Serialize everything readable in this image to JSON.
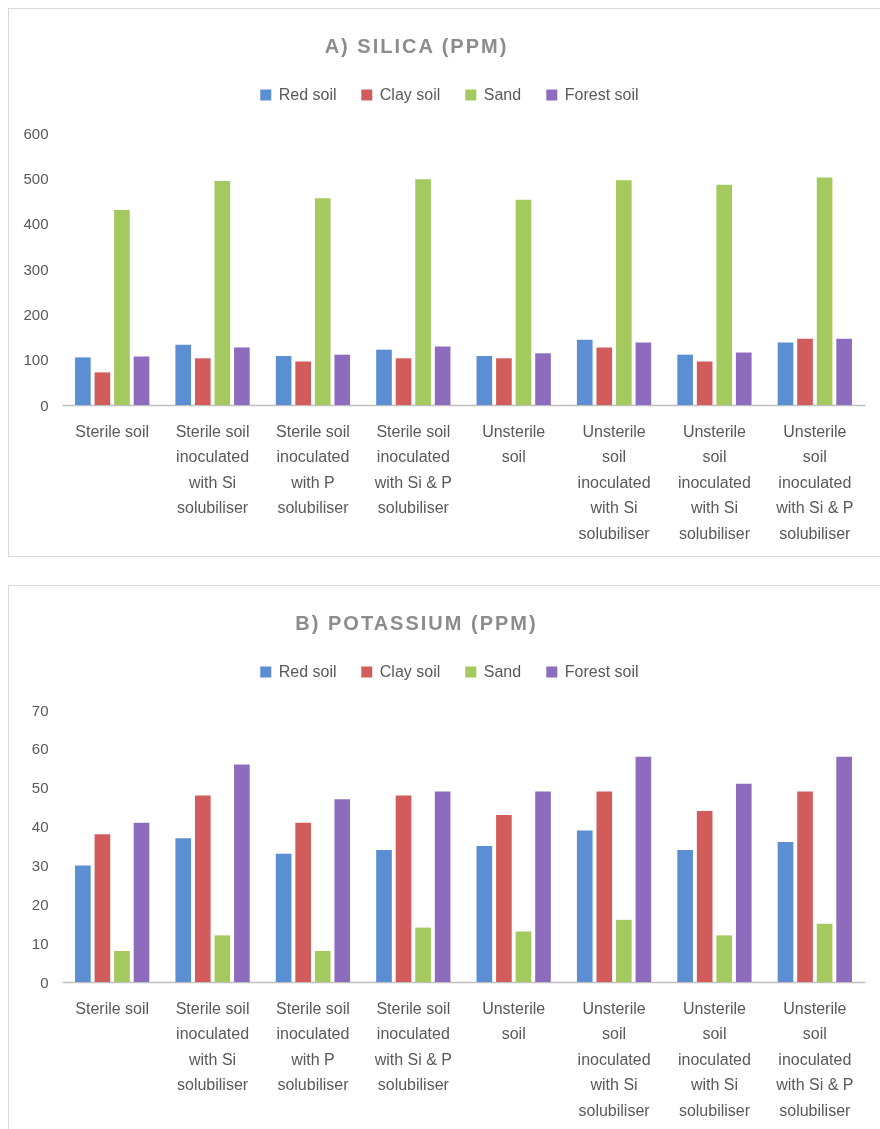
{
  "chart_data": [
    {
      "type": "bar",
      "title": "A) SILICA (PPM)",
      "categories": [
        "Sterile soil",
        "Sterile soil inoculated with Si solubiliser",
        "Sterile soil inoculated with P solubiliser",
        "Sterile soil inoculated with Si & P solubiliser",
        "Unsterile soil",
        "Unsterile soil inoculated with Si solubiliser",
        "Unsterile soil inoculated with Si solubiliser",
        "Unsterile soil inoculated with Si & P solubiliser"
      ],
      "series": [
        {
          "name": "Red soil",
          "color": "#5b8ed2",
          "values": [
            105,
            133,
            108,
            122,
            108,
            144,
            111,
            138
          ]
        },
        {
          "name": "Clay soil",
          "color": "#d25b5b",
          "values": [
            72,
            103,
            96,
            103,
            103,
            127,
            96,
            146
          ]
        },
        {
          "name": "Sand",
          "color": "#a3c95f",
          "values": [
            430,
            494,
            456,
            498,
            453,
            496,
            486,
            502
          ]
        },
        {
          "name": "Forest soil",
          "color": "#8d6cbd",
          "values": [
            107,
            127,
            111,
            129,
            114,
            138,
            116,
            146
          ]
        }
      ],
      "ylim": [
        0,
        600
      ],
      "yticks": [
        0,
        100,
        200,
        300,
        400,
        500,
        600
      ],
      "grid": false,
      "legend": "top"
    },
    {
      "type": "bar",
      "title": "B) POTASSIUM (PPM)",
      "categories": [
        "Sterile soil",
        "Sterile soil inoculated with Si solubiliser",
        "Sterile soil inoculated with P solubiliser",
        "Sterile soil inoculated with Si & P solubiliser",
        "Unsterile soil",
        "Unsterile soil inoculated with Si solubiliser",
        "Unsterile soil inoculated with Si solubiliser",
        "Unsterile soil inoculated with Si & P solubiliser"
      ],
      "series": [
        {
          "name": "Red soil",
          "color": "#5b8ed2",
          "values": [
            30,
            37,
            33,
            34,
            35,
            39,
            34,
            36
          ]
        },
        {
          "name": "Clay soil",
          "color": "#d25b5b",
          "values": [
            38,
            48,
            41,
            48,
            43,
            49,
            44,
            49
          ]
        },
        {
          "name": "Sand",
          "color": "#a3c95f",
          "values": [
            8,
            12,
            8,
            14,
            13,
            16,
            12,
            15
          ]
        },
        {
          "name": "Forest soil",
          "color": "#8d6cbd",
          "values": [
            41,
            56,
            47,
            49,
            49,
            58,
            51,
            58
          ]
        }
      ],
      "ylim": [
        0,
        70
      ],
      "yticks": [
        0,
        10,
        20,
        30,
        40,
        50,
        60,
        70
      ],
      "grid": false,
      "legend": "top"
    }
  ]
}
